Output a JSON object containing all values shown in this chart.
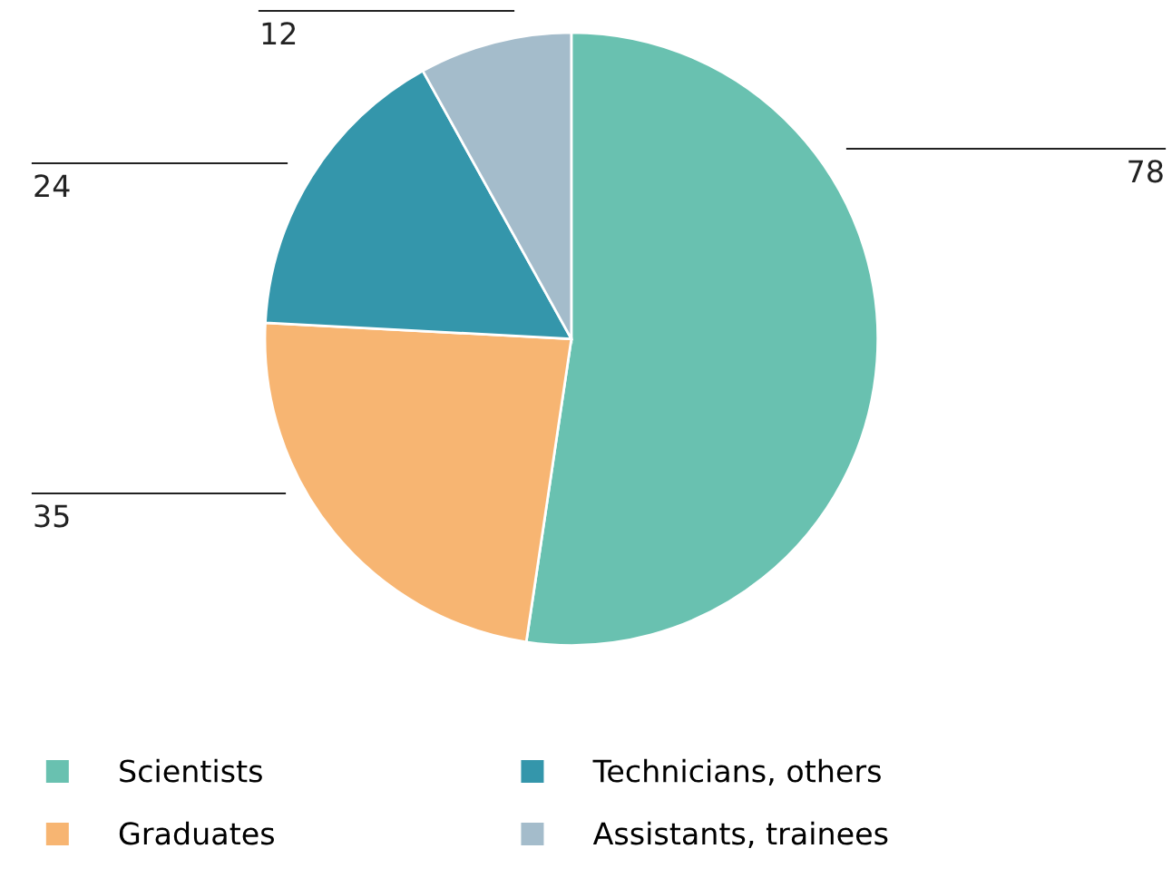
{
  "chart_data": {
    "type": "pie",
    "categories": [
      "Scientists",
      "Graduates",
      "Technicians, others",
      "Assistants, trainees"
    ],
    "values": [
      78,
      35,
      24,
      12
    ],
    "colors": [
      "#69c1b0",
      "#f7b572",
      "#3496ab",
      "#a4bccb"
    ],
    "data_labels": true,
    "legend": "bottom"
  }
}
